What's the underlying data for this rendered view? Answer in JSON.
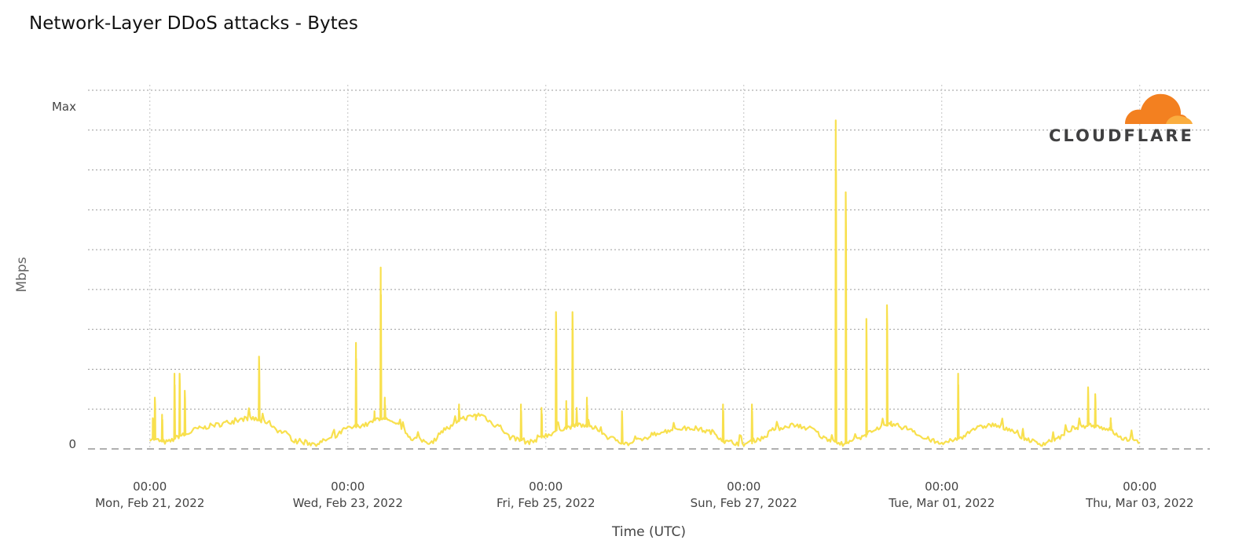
{
  "colors": {
    "series": "#f8e04e",
    "grid": "#9a9a9a",
    "baseline": "#b0b0b0",
    "logo_orange": "#f38020",
    "logo_light": "#faad3f",
    "logo_text": "#404041"
  },
  "logo": {
    "icon": "cloudflare-cloud-icon",
    "text": "CLOUDFLARE"
  },
  "chart_data": {
    "type": "line",
    "title": "Network-Layer DDoS attacks - Bytes",
    "xlabel": "Time (UTC)",
    "ylabel": "Mbps",
    "y_tick_labels": [
      "Max",
      "0"
    ],
    "ylim": [
      0,
      100
    ],
    "xlim": [
      "2022-02-20T09:00:00Z",
      "2022-03-03T17:00:00Z"
    ],
    "x_tick_labels": [
      {
        "time": "00:00",
        "date": "Mon, Feb 21, 2022"
      },
      {
        "time": "00:00",
        "date": "Wed, Feb 23, 2022"
      },
      {
        "time": "00:00",
        "date": "Fri, Feb 25, 2022"
      },
      {
        "time": "00:00",
        "date": "Sun, Feb 27, 2022"
      },
      {
        "time": "00:00",
        "date": "Tue, Mar 01, 2022"
      },
      {
        "time": "00:00",
        "date": "Thu, Mar 03, 2022"
      }
    ],
    "grid": {
      "vertical": true,
      "horizontal": true,
      "style": "dotted"
    },
    "legend": "none",
    "series": [
      {
        "values": [
          [
            "2022-02-21T00:00:00Z",
            3
          ],
          [
            "2022-02-21T04:00:00Z",
            2
          ],
          [
            "2022-02-21T08:00:00Z",
            4
          ],
          [
            "2022-02-21T12:00:00Z",
            6
          ],
          [
            "2022-02-21T16:00:00Z",
            7
          ],
          [
            "2022-02-21T20:00:00Z",
            8
          ],
          [
            "2022-02-22T00:00:00Z",
            9
          ],
          [
            "2022-02-22T04:00:00Z",
            8
          ],
          [
            "2022-02-22T08:00:00Z",
            5
          ],
          [
            "2022-02-22T12:00:00Z",
            2
          ],
          [
            "2022-02-22T16:00:00Z",
            1.5
          ],
          [
            "2022-02-22T20:00:00Z",
            3
          ],
          [
            "2022-02-23T00:00:00Z",
            6
          ],
          [
            "2022-02-23T04:00:00Z",
            7
          ],
          [
            "2022-02-23T08:00:00Z",
            9
          ],
          [
            "2022-02-23T12:00:00Z",
            7
          ],
          [
            "2022-02-23T16:00:00Z",
            3
          ],
          [
            "2022-02-23T20:00:00Z",
            2
          ],
          [
            "2022-02-24T00:00:00Z",
            6
          ],
          [
            "2022-02-24T04:00:00Z",
            9
          ],
          [
            "2022-02-24T08:00:00Z",
            10
          ],
          [
            "2022-02-24T12:00:00Z",
            7
          ],
          [
            "2022-02-24T16:00:00Z",
            3
          ],
          [
            "2022-02-24T20:00:00Z",
            2
          ],
          [
            "2022-02-25T00:00:00Z",
            4
          ],
          [
            "2022-02-25T04:00:00Z",
            6
          ],
          [
            "2022-02-25T08:00:00Z",
            7
          ],
          [
            "2022-02-25T12:00:00Z",
            6
          ],
          [
            "2022-02-25T16:00:00Z",
            3
          ],
          [
            "2022-02-25T20:00:00Z",
            1.5
          ],
          [
            "2022-02-26T00:00:00Z",
            3
          ],
          [
            "2022-02-26T04:00:00Z",
            5
          ],
          [
            "2022-02-26T08:00:00Z",
            6
          ],
          [
            "2022-02-26T12:00:00Z",
            6
          ],
          [
            "2022-02-26T16:00:00Z",
            5
          ],
          [
            "2022-02-26T20:00:00Z",
            2
          ],
          [
            "2022-02-27T00:00:00Z",
            1.5
          ],
          [
            "2022-02-27T04:00:00Z",
            3
          ],
          [
            "2022-02-27T08:00:00Z",
            6
          ],
          [
            "2022-02-27T12:00:00Z",
            7
          ],
          [
            "2022-02-27T16:00:00Z",
            6
          ],
          [
            "2022-02-27T20:00:00Z",
            3
          ],
          [
            "2022-02-28T00:00:00Z",
            1.5
          ],
          [
            "2022-02-28T04:00:00Z",
            3
          ],
          [
            "2022-02-28T08:00:00Z",
            6
          ],
          [
            "2022-02-28T12:00:00Z",
            7
          ],
          [
            "2022-02-28T16:00:00Z",
            6
          ],
          [
            "2022-02-28T20:00:00Z",
            3
          ],
          [
            "2022-03-01T00:00:00Z",
            1.5
          ],
          [
            "2022-03-01T04:00:00Z",
            3
          ],
          [
            "2022-03-01T08:00:00Z",
            6
          ],
          [
            "2022-03-01T12:00:00Z",
            7
          ],
          [
            "2022-03-01T16:00:00Z",
            6
          ],
          [
            "2022-03-01T20:00:00Z",
            3
          ],
          [
            "2022-03-02T00:00:00Z",
            1.5
          ],
          [
            "2022-03-02T04:00:00Z",
            3
          ],
          [
            "2022-03-02T08:00:00Z",
            6
          ],
          [
            "2022-03-02T12:00:00Z",
            7
          ],
          [
            "2022-03-02T16:00:00Z",
            6
          ],
          [
            "2022-03-02T20:00:00Z",
            3
          ],
          [
            "2022-03-03T00:00:00Z",
            2
          ]
        ],
        "spikes": [
          [
            "2022-02-21T00:45:00Z",
            9
          ],
          [
            "2022-02-21T01:15:00Z",
            15
          ],
          [
            "2022-02-21T03:00:00Z",
            10
          ],
          [
            "2022-02-21T06:00:00Z",
            22
          ],
          [
            "2022-02-21T07:15:00Z",
            22
          ],
          [
            "2022-02-21T08:30:00Z",
            17
          ],
          [
            "2022-02-22T02:30:00Z",
            27
          ],
          [
            "2022-02-23T02:00:00Z",
            31
          ],
          [
            "2022-02-23T06:30:00Z",
            11
          ],
          [
            "2022-02-23T08:00:00Z",
            53
          ],
          [
            "2022-02-23T09:00:00Z",
            15
          ],
          [
            "2022-02-24T03:00:00Z",
            13
          ],
          [
            "2022-02-24T07:00:00Z",
            10
          ],
          [
            "2022-02-24T18:00:00Z",
            13
          ],
          [
            "2022-02-24T23:00:00Z",
            12
          ],
          [
            "2022-02-25T02:30:00Z",
            40
          ],
          [
            "2022-02-25T05:00:00Z",
            14
          ],
          [
            "2022-02-25T06:30:00Z",
            40
          ],
          [
            "2022-02-25T07:30:00Z",
            12
          ],
          [
            "2022-02-25T10:00:00Z",
            15
          ],
          [
            "2022-02-25T18:30:00Z",
            11
          ],
          [
            "2022-02-26T19:00:00Z",
            13
          ],
          [
            "2022-02-27T02:00:00Z",
            13
          ],
          [
            "2022-02-27T22:20:00Z",
            96
          ],
          [
            "2022-02-28T00:45:00Z",
            75
          ],
          [
            "2022-02-28T05:45:00Z",
            38
          ],
          [
            "2022-02-28T10:45:00Z",
            42
          ],
          [
            "2022-02-28T11:45:00Z",
            8
          ],
          [
            "2022-03-01T04:00:00Z",
            22
          ],
          [
            "2022-03-02T11:30:00Z",
            18
          ],
          [
            "2022-03-02T13:15:00Z",
            16
          ],
          [
            "2022-03-02T17:00:00Z",
            9
          ]
        ]
      }
    ]
  }
}
